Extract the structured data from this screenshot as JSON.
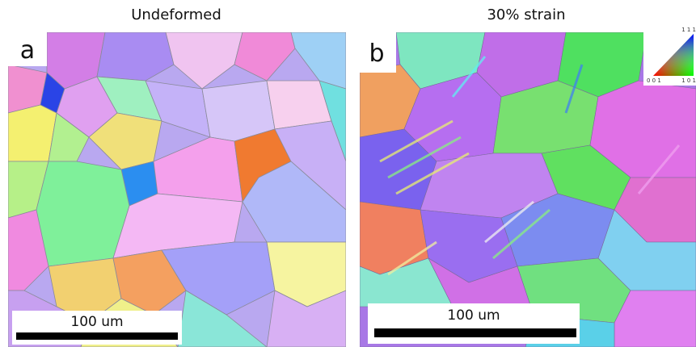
{
  "panels": [
    {
      "title": "Undeformed",
      "label": "a",
      "scale_bar": "100 um"
    },
    {
      "title": "30% strain",
      "label": "b",
      "scale_bar": "100 um",
      "legend": {
        "corners": [
          "0 0 1",
          "1 0 1",
          "1 1 1"
        ]
      }
    }
  ]
}
